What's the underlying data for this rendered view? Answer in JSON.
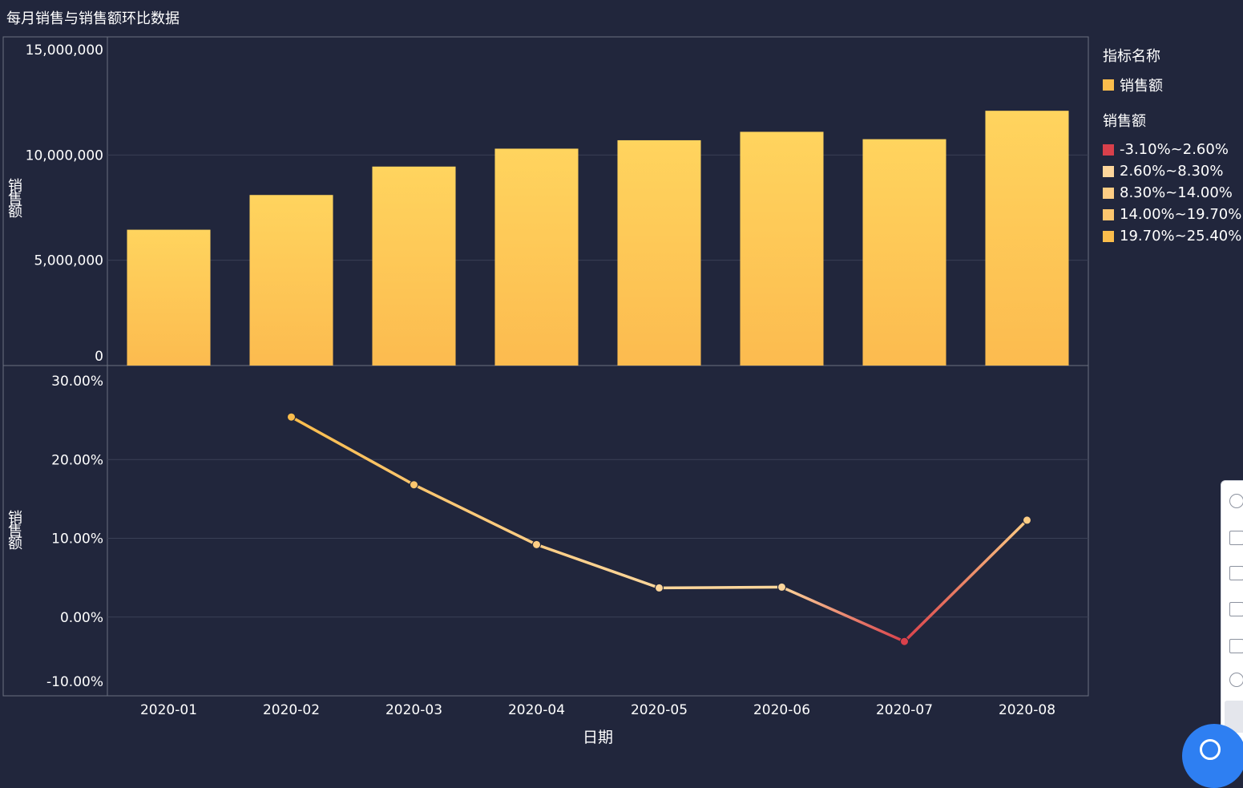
{
  "title": "每月销售与销售额环比数据",
  "legend": {
    "group1_title": "指标名称",
    "group1_items": [
      {
        "label": "销售额",
        "color": "#fbbd4c"
      }
    ],
    "group2_title": "销售额",
    "group2_items": [
      {
        "label": "-3.10%~2.60%",
        "color": "#d9404b"
      },
      {
        "label": "2.60%~8.30%",
        "color": "#fdd69b"
      },
      {
        "label": "8.30%~14.00%",
        "color": "#fdcd84"
      },
      {
        "label": "14.00%~19.70%",
        "color": "#fcc66e"
      },
      {
        "label": "19.70%~25.40%",
        "color": "#fbbd4c"
      }
    ]
  },
  "chart_data": [
    {
      "type": "bar",
      "categories": [
        "2020-01",
        "2020-02",
        "2020-03",
        "2020-04",
        "2020-05",
        "2020-06",
        "2020-07",
        "2020-08"
      ],
      "series": [
        {
          "name": "销售额",
          "values": [
            6450000,
            8100000,
            9450000,
            10300000,
            10700000,
            11100000,
            10750000,
            12100000
          ]
        }
      ],
      "ylabel": "销售额",
      "ylim": [
        0,
        15000000
      ],
      "yticks": [
        "0",
        "5,000,000",
        "10,000,000",
        "15,000,000"
      ],
      "colors": {
        "bar_top": "#ffd45e",
        "bar_bottom": "#fcbb4f"
      }
    },
    {
      "type": "line",
      "categories": [
        "2020-01",
        "2020-02",
        "2020-03",
        "2020-04",
        "2020-05",
        "2020-06",
        "2020-07",
        "2020-08"
      ],
      "series": [
        {
          "name": "销售额",
          "values": [
            null,
            25.4,
            16.8,
            9.2,
            3.7,
            3.8,
            -3.1,
            12.3
          ]
        }
      ],
      "ylabel": "销售额",
      "xlabel": "日期",
      "ylim": [
        -10,
        30
      ],
      "yticks": [
        "-10.00%",
        "0.00%",
        "10.00%",
        "20.00%",
        "30.00%"
      ],
      "grid": true
    }
  ]
}
